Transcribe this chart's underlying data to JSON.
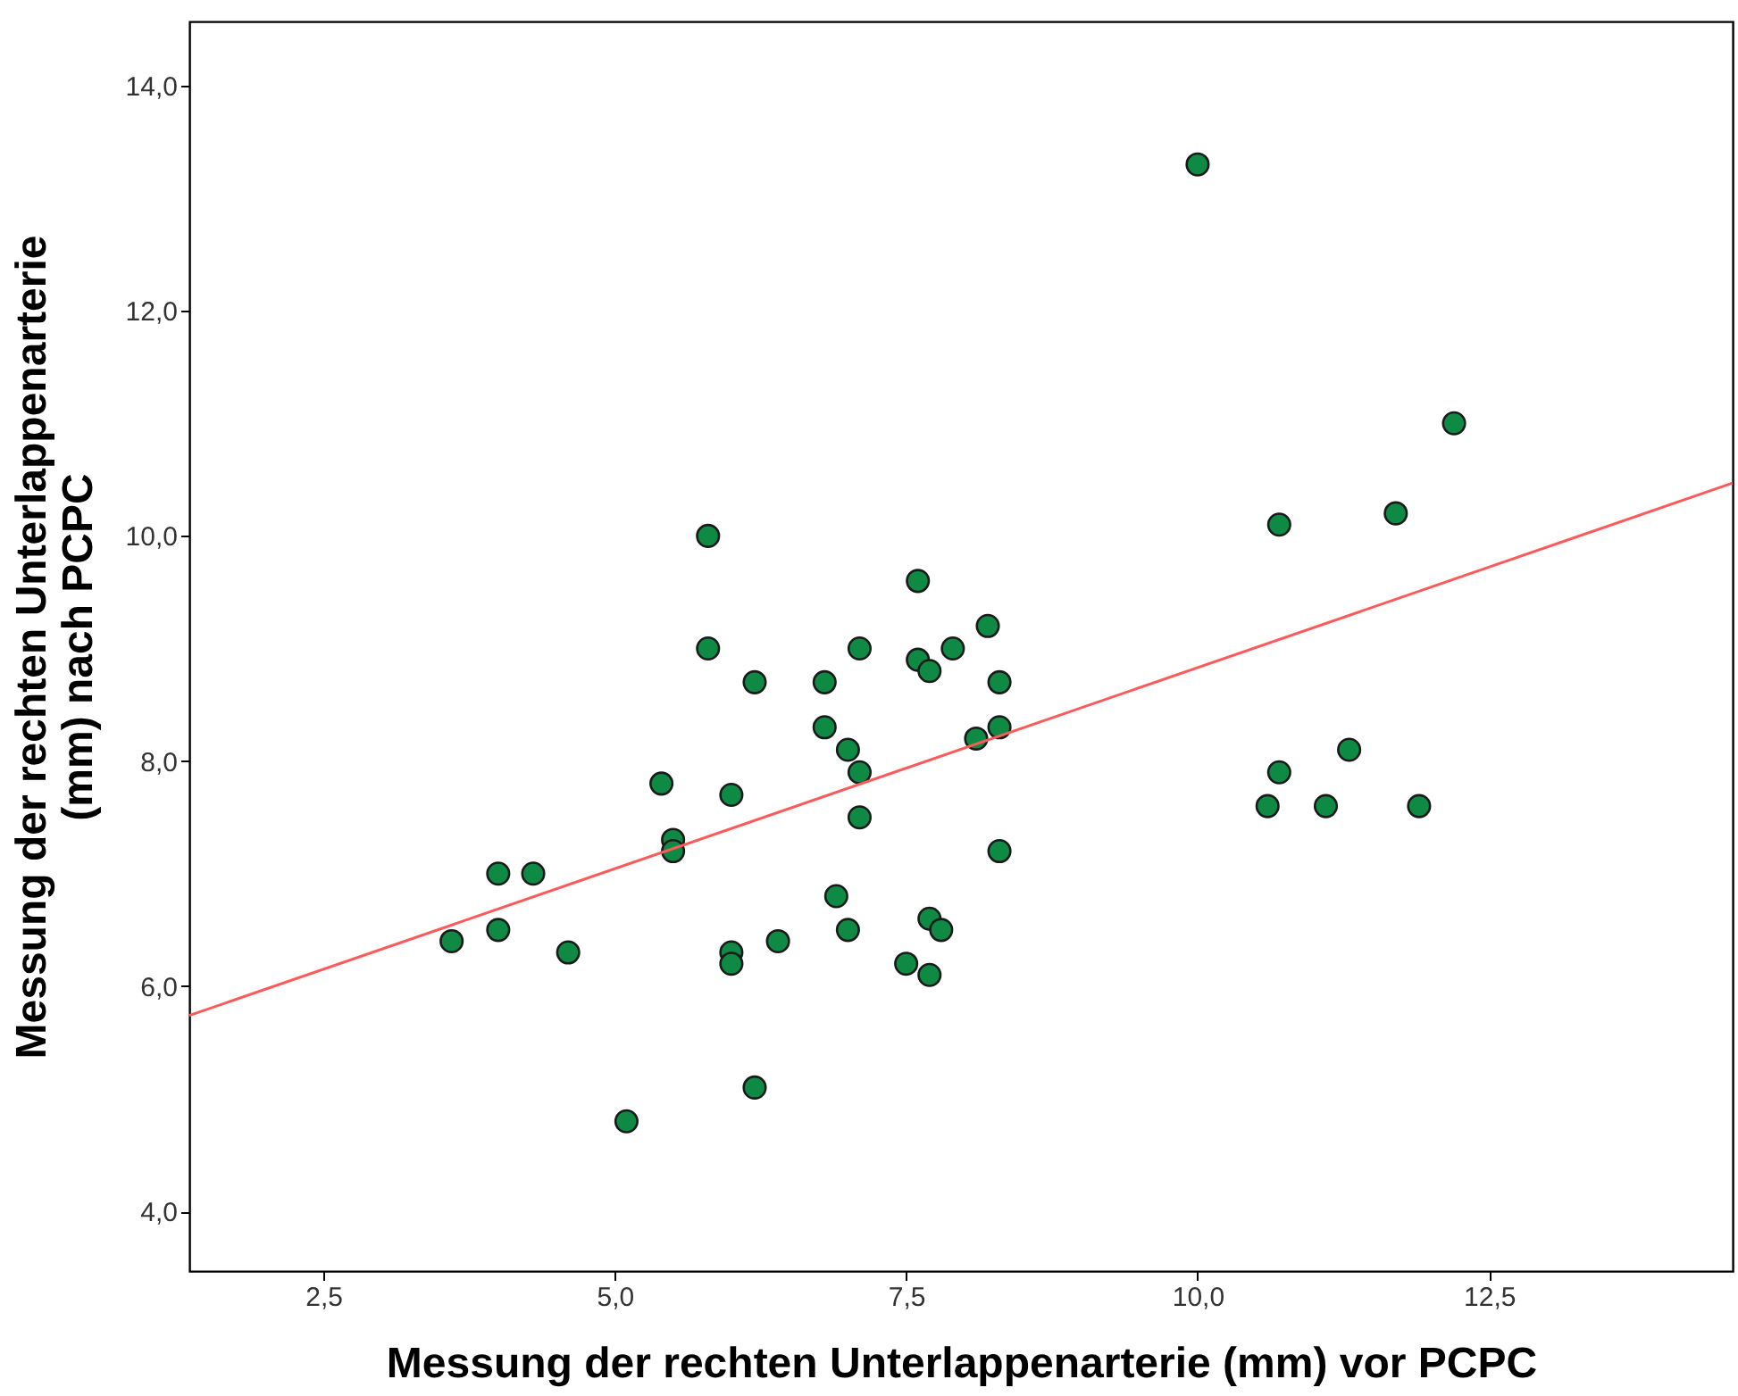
{
  "chart_data": {
    "type": "scatter",
    "xlabel": "Messung der rechten Unterlappenarterie (mm) vor PCPC",
    "ylabel": "Messung der rechten Unterlappenarterie (mm) nach PCPC",
    "xlim": [
      1.35,
      14.59
    ],
    "ylim": [
      3.47,
      14.57
    ],
    "xticks": [
      {
        "value": 2.5,
        "label": "2,5"
      },
      {
        "value": 5,
        "label": "5,0"
      },
      {
        "value": 7.5,
        "label": "7,5"
      },
      {
        "value": 10,
        "label": "10,0"
      },
      {
        "value": 12.5,
        "label": "12,5"
      }
    ],
    "yticks": [
      {
        "value": 4,
        "label": "4,0"
      },
      {
        "value": 6,
        "label": "6,0"
      },
      {
        "value": 8,
        "label": "8,0"
      },
      {
        "value": 10,
        "label": "10,0"
      },
      {
        "value": 12,
        "label": "12,0"
      },
      {
        "value": 14,
        "label": "14,0"
      }
    ],
    "grid": false,
    "marker": "circle",
    "series": [
      {
        "color": "#0e8a44",
        "x": [
          3.6,
          4.0,
          4.0,
          4.3,
          4.6,
          5.1,
          5.4,
          5.5,
          5.5,
          5.8,
          5.8,
          6.0,
          6.0,
          6.0,
          6.2,
          6.2,
          6.4,
          6.8,
          6.8,
          6.9,
          7.0,
          7.0,
          7.1,
          7.1,
          7.1,
          7.5,
          7.6,
          7.6,
          7.7,
          7.7,
          7.7,
          7.8,
          7.9,
          8.1,
          8.2,
          8.3,
          8.3,
          8.3,
          10.0,
          10.6,
          10.7,
          10.7,
          11.1,
          11.3,
          11.7,
          11.9,
          12.2
        ],
        "values": [
          6.4,
          7.0,
          6.5,
          7.0,
          6.3,
          4.8,
          7.8,
          7.3,
          7.2,
          10.0,
          9.0,
          7.7,
          6.3,
          6.2,
          8.7,
          5.1,
          6.4,
          8.7,
          8.3,
          6.8,
          8.1,
          6.5,
          9.0,
          7.9,
          7.5,
          6.2,
          9.6,
          8.9,
          8.8,
          6.6,
          6.1,
          6.5,
          9.0,
          8.2,
          9.2,
          8.7,
          8.3,
          7.2,
          13.3,
          7.6,
          7.9,
          10.1,
          7.6,
          8.1,
          10.2,
          7.6,
          11.0
        ]
      },
      {
        "type": "line",
        "color": "#ff5a5a",
        "line_style": "solid",
        "marker": "none",
        "x": [
          1.35,
          14.59
        ],
        "values": [
          5.74,
          10.47
        ]
      }
    ]
  }
}
